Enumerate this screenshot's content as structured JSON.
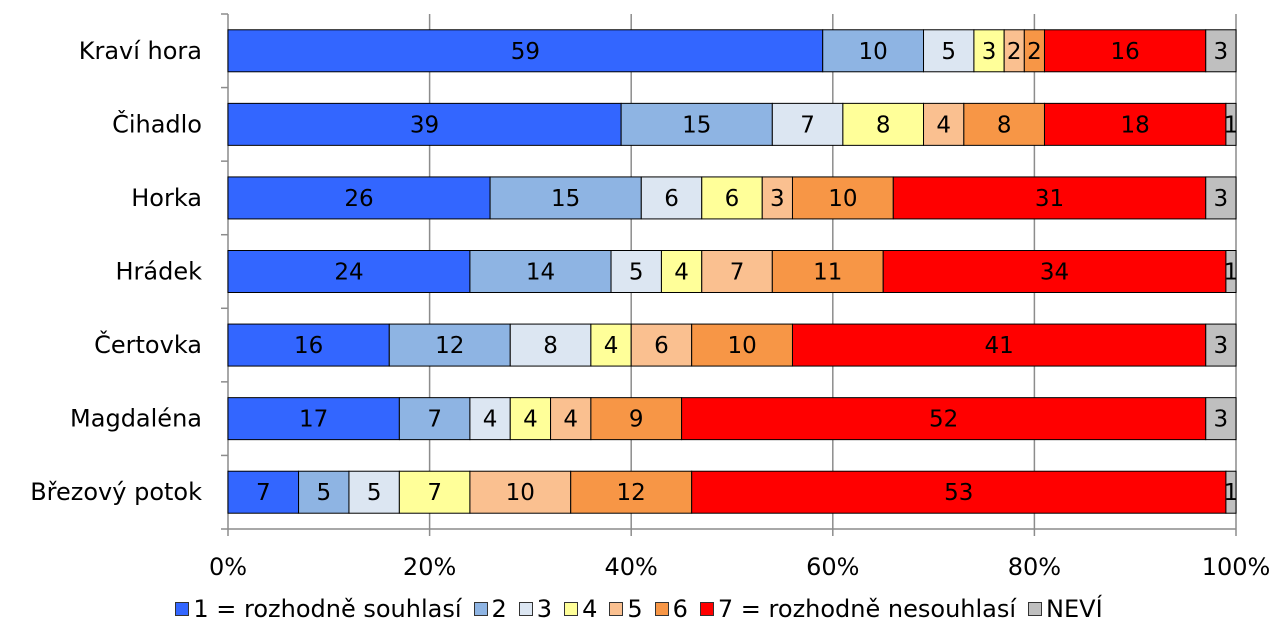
{
  "chart_data": {
    "type": "bar",
    "orientation": "horizontal",
    "stacked": "percent",
    "categories": [
      "Kraví hora",
      "Čihadlo",
      "Horka",
      "Hrádek",
      "Čertovka",
      "Magdaléna",
      "Březový potok"
    ],
    "series": [
      {
        "name": "1 = rozhodně souhlasí",
        "color": "#3366ff",
        "values": [
          59,
          39,
          26,
          24,
          16,
          17,
          7
        ]
      },
      {
        "name": "2",
        "color": "#8eb4e3",
        "values": [
          10,
          15,
          15,
          14,
          12,
          7,
          5
        ]
      },
      {
        "name": "3",
        "color": "#dce6f2",
        "values": [
          5,
          7,
          6,
          5,
          8,
          4,
          5
        ]
      },
      {
        "name": "4",
        "color": "#ffff99",
        "values": [
          3,
          8,
          6,
          4,
          4,
          4,
          7
        ]
      },
      {
        "name": "5",
        "color": "#fac090",
        "values": [
          2,
          4,
          3,
          7,
          6,
          4,
          10
        ]
      },
      {
        "name": "6",
        "color": "#f79646",
        "values": [
          2,
          8,
          10,
          11,
          10,
          9,
          12
        ]
      },
      {
        "name": "7 = rozhodně nesouhlasí",
        "color": "#ff0000",
        "values": [
          16,
          18,
          31,
          34,
          41,
          52,
          53
        ]
      },
      {
        "name": "NEVÍ",
        "color": "#bfbfbf",
        "values": [
          3,
          1,
          3,
          1,
          3,
          3,
          1
        ]
      }
    ],
    "xticks": [
      "0%",
      "20%",
      "40%",
      "60%",
      "80%",
      "100%"
    ],
    "xlim": [
      0,
      100
    ],
    "grid": true,
    "legend_position": "bottom"
  }
}
